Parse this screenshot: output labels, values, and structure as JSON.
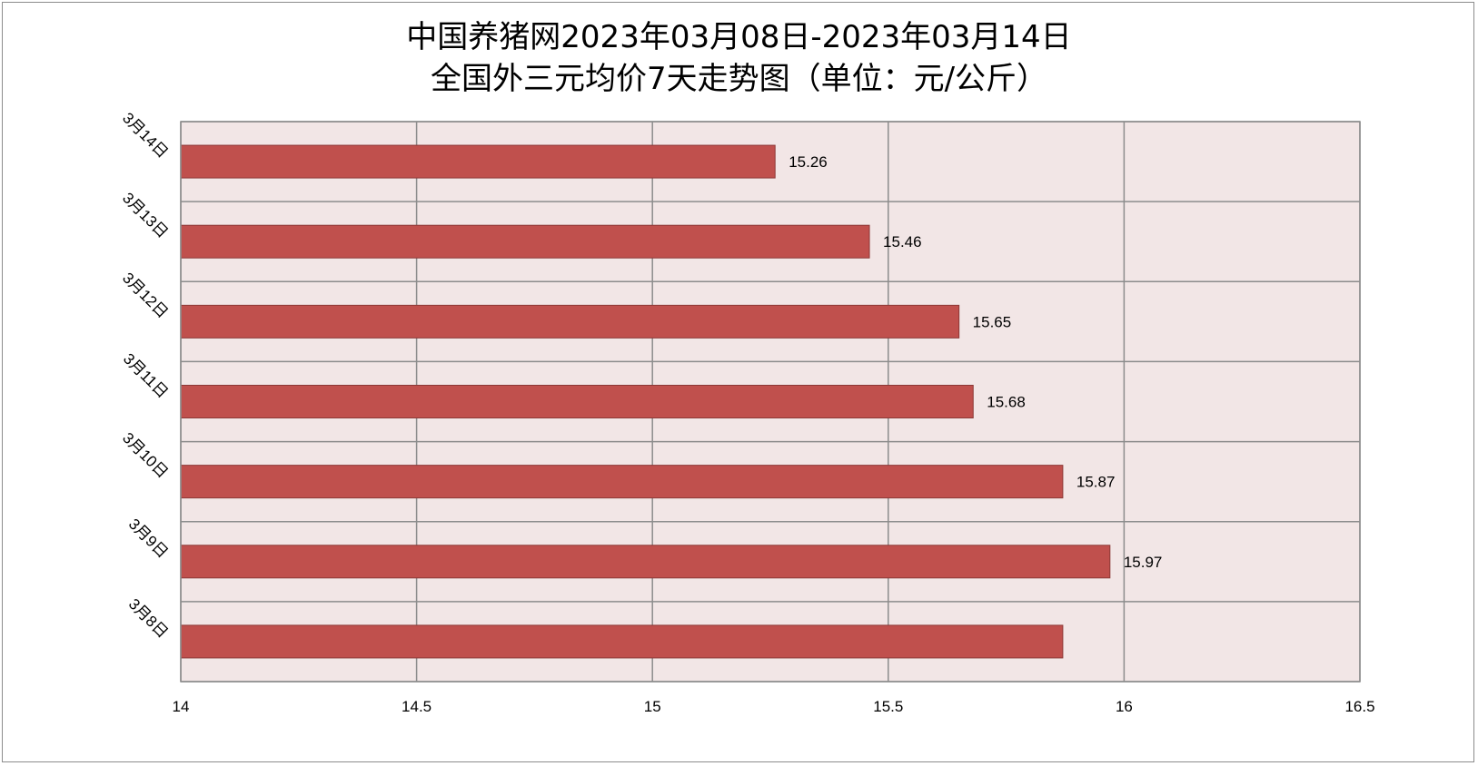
{
  "chart_data": {
    "type": "bar",
    "orientation": "horizontal",
    "title_line1": "中国养猪网2023年03月08日-2023年03月14日",
    "title_line2": "全国外三元均价7天走势图（单位：元/公斤）",
    "categories": [
      "3月14日",
      "3月13日",
      "3月12日",
      "3月11日",
      "3月10日",
      "3月9日",
      "3月8日"
    ],
    "values": [
      15.26,
      15.46,
      15.65,
      15.68,
      15.87,
      15.97,
      15.87
    ],
    "data_labels": [
      "15.26",
      "15.46",
      "15.65",
      "15.68",
      "15.87",
      "15.97",
      ""
    ],
    "xlim": [
      14,
      16.5
    ],
    "xticks": [
      "14",
      "14.5",
      "15",
      "15.5",
      "16",
      "16.5"
    ],
    "grid": true,
    "legend": "none",
    "colors": {
      "bar_fill": "#C0504D",
      "bar_stroke": "#8C3836",
      "plot_background": "#F2E6E6",
      "grid": "#8C8C8C"
    }
  }
}
